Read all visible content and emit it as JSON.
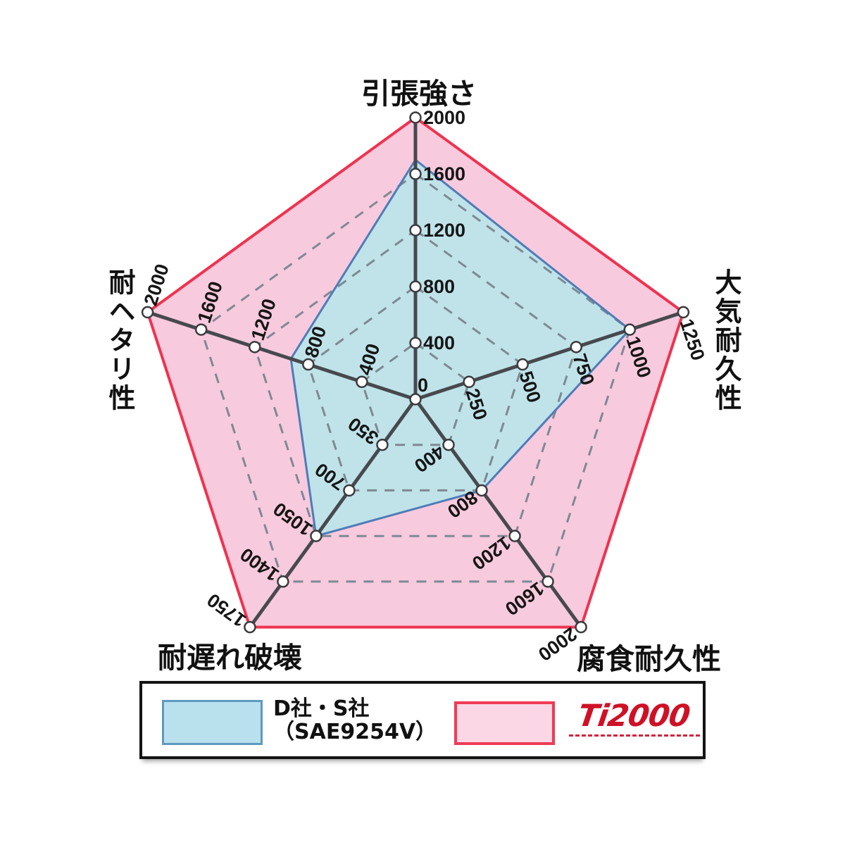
{
  "page": {
    "background": "#ffffff"
  },
  "chart_data": {
    "type": "radar",
    "shape": "pentagon",
    "axes": [
      {
        "label": "引張強さ",
        "position": "top",
        "max": 2000,
        "ticks": [
          400,
          800,
          1200,
          1600,
          2000
        ]
      },
      {
        "label": "大気耐久性",
        "position": "right",
        "max": 1250,
        "ticks": [
          250,
          500,
          750,
          1000,
          1250
        ]
      },
      {
        "label": "腐食耐久性",
        "position": "bottom-right",
        "max": 2000,
        "ticks": [
          400,
          800,
          1200,
          1600,
          2000
        ]
      },
      {
        "label": "耐遅れ破壊",
        "position": "bottom-left",
        "max": 1750,
        "ticks": [
          350,
          700,
          1050,
          1400,
          1750
        ]
      },
      {
        "label": "耐ヘタリ性",
        "position": "left",
        "max": 2000,
        "ticks": [
          400,
          800,
          1200,
          1600,
          2000
        ]
      }
    ],
    "center_label": "0",
    "grid_levels": [
      0.2,
      0.4,
      0.6,
      0.8
    ],
    "grid_style": {
      "color": "#7e8993",
      "dash": "14 11",
      "width": 3
    },
    "axis_style": {
      "color": "#47494e",
      "width": 5
    },
    "marker_style": {
      "fill": "#ffffff",
      "stroke": "#3b3b3f",
      "radius": 7.5,
      "stroke_width": 2.5
    },
    "series": [
      {
        "name": "Ti2000",
        "values": [
          2000,
          1250,
          2000,
          1750,
          2000
        ],
        "fill": "#f8cadd",
        "stroke": "#ee3350",
        "stroke_width": 4
      },
      {
        "name": "D社・S社（SAE9254V）",
        "values": [
          1700,
          1000,
          800,
          1050,
          930
        ],
        "fill": "#bfe3e9",
        "stroke": "#4e7cb8",
        "stroke_width": 3
      }
    ],
    "legend_position": "bottom"
  },
  "legend": {
    "items": [
      {
        "label_line1": "D社・S社",
        "label_line2": "（SAE9254V）",
        "swatch_fill": "#b9e1ed",
        "swatch_border": "#5f99c0"
      },
      {
        "logo": "Ti2000",
        "swatch_fill": "#fbd7e5",
        "swatch_border": "#ef3b56",
        "logo_color": "#cf1126"
      }
    ]
  }
}
